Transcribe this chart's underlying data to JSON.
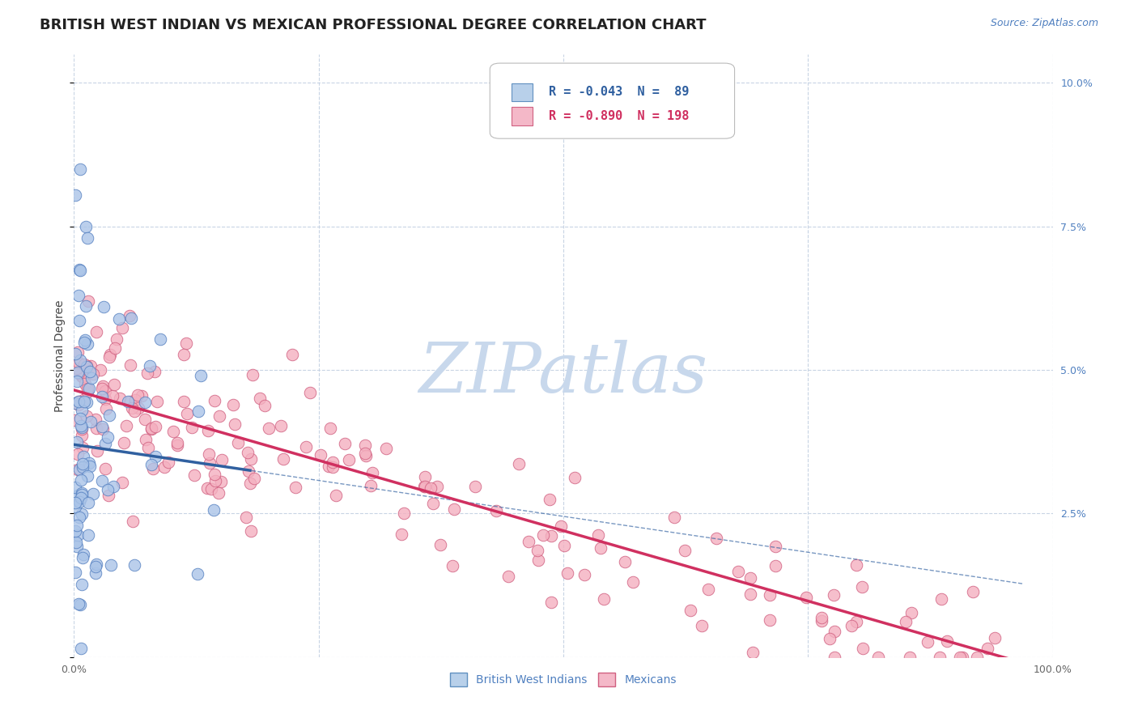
{
  "title": "BRITISH WEST INDIAN VS MEXICAN PROFESSIONAL DEGREE CORRELATION CHART",
  "source": "Source: ZipAtlas.com",
  "ylabel": "Professional Degree",
  "x_min": 0.0,
  "x_max": 1.0,
  "y_min": 0.0,
  "y_max": 0.105,
  "y_ticks": [
    0.0,
    0.025,
    0.05,
    0.075,
    0.1
  ],
  "y_tick_labels_right": [
    "",
    "2.5%",
    "5.0%",
    "7.5%",
    "10.0%"
  ],
  "legend1_label": "R = -0.043  N =  89",
  "legend2_label": "R = -0.890  N = 198",
  "legend1_facecolor": "#b8d0ea",
  "legend2_facecolor": "#f4b8c8",
  "legend1_edgecolor": "#6090c0",
  "legend2_edgecolor": "#d06080",
  "dot_blue_face": "#aac4e8",
  "dot_blue_edge": "#5580c0",
  "dot_pink_face": "#f4b0c0",
  "dot_pink_edge": "#d06080",
  "regression_blue_color": "#3060a0",
  "regression_pink_color": "#d03060",
  "watermark_text": "ZIPatlas",
  "watermark_color": "#c8d8ec",
  "background_color": "#ffffff",
  "grid_color": "#c8d4e4",
  "title_color": "#222222",
  "source_color": "#5080c0",
  "ylabel_color": "#444444",
  "tick_color": "#5080c0",
  "xtick_color": "#666666",
  "legend_text_blue": "#3060a0",
  "legend_text_pink": "#d03060",
  "bottom_legend_color": "#5080c0",
  "blue_intercept": 0.037,
  "blue_slope": -0.025,
  "pink_intercept": 0.0465,
  "pink_slope": -0.049,
  "blue_line_x_end": 0.18,
  "title_fontsize": 13,
  "source_fontsize": 9,
  "axis_label_fontsize": 10,
  "tick_fontsize": 9,
  "legend_fontsize": 11
}
